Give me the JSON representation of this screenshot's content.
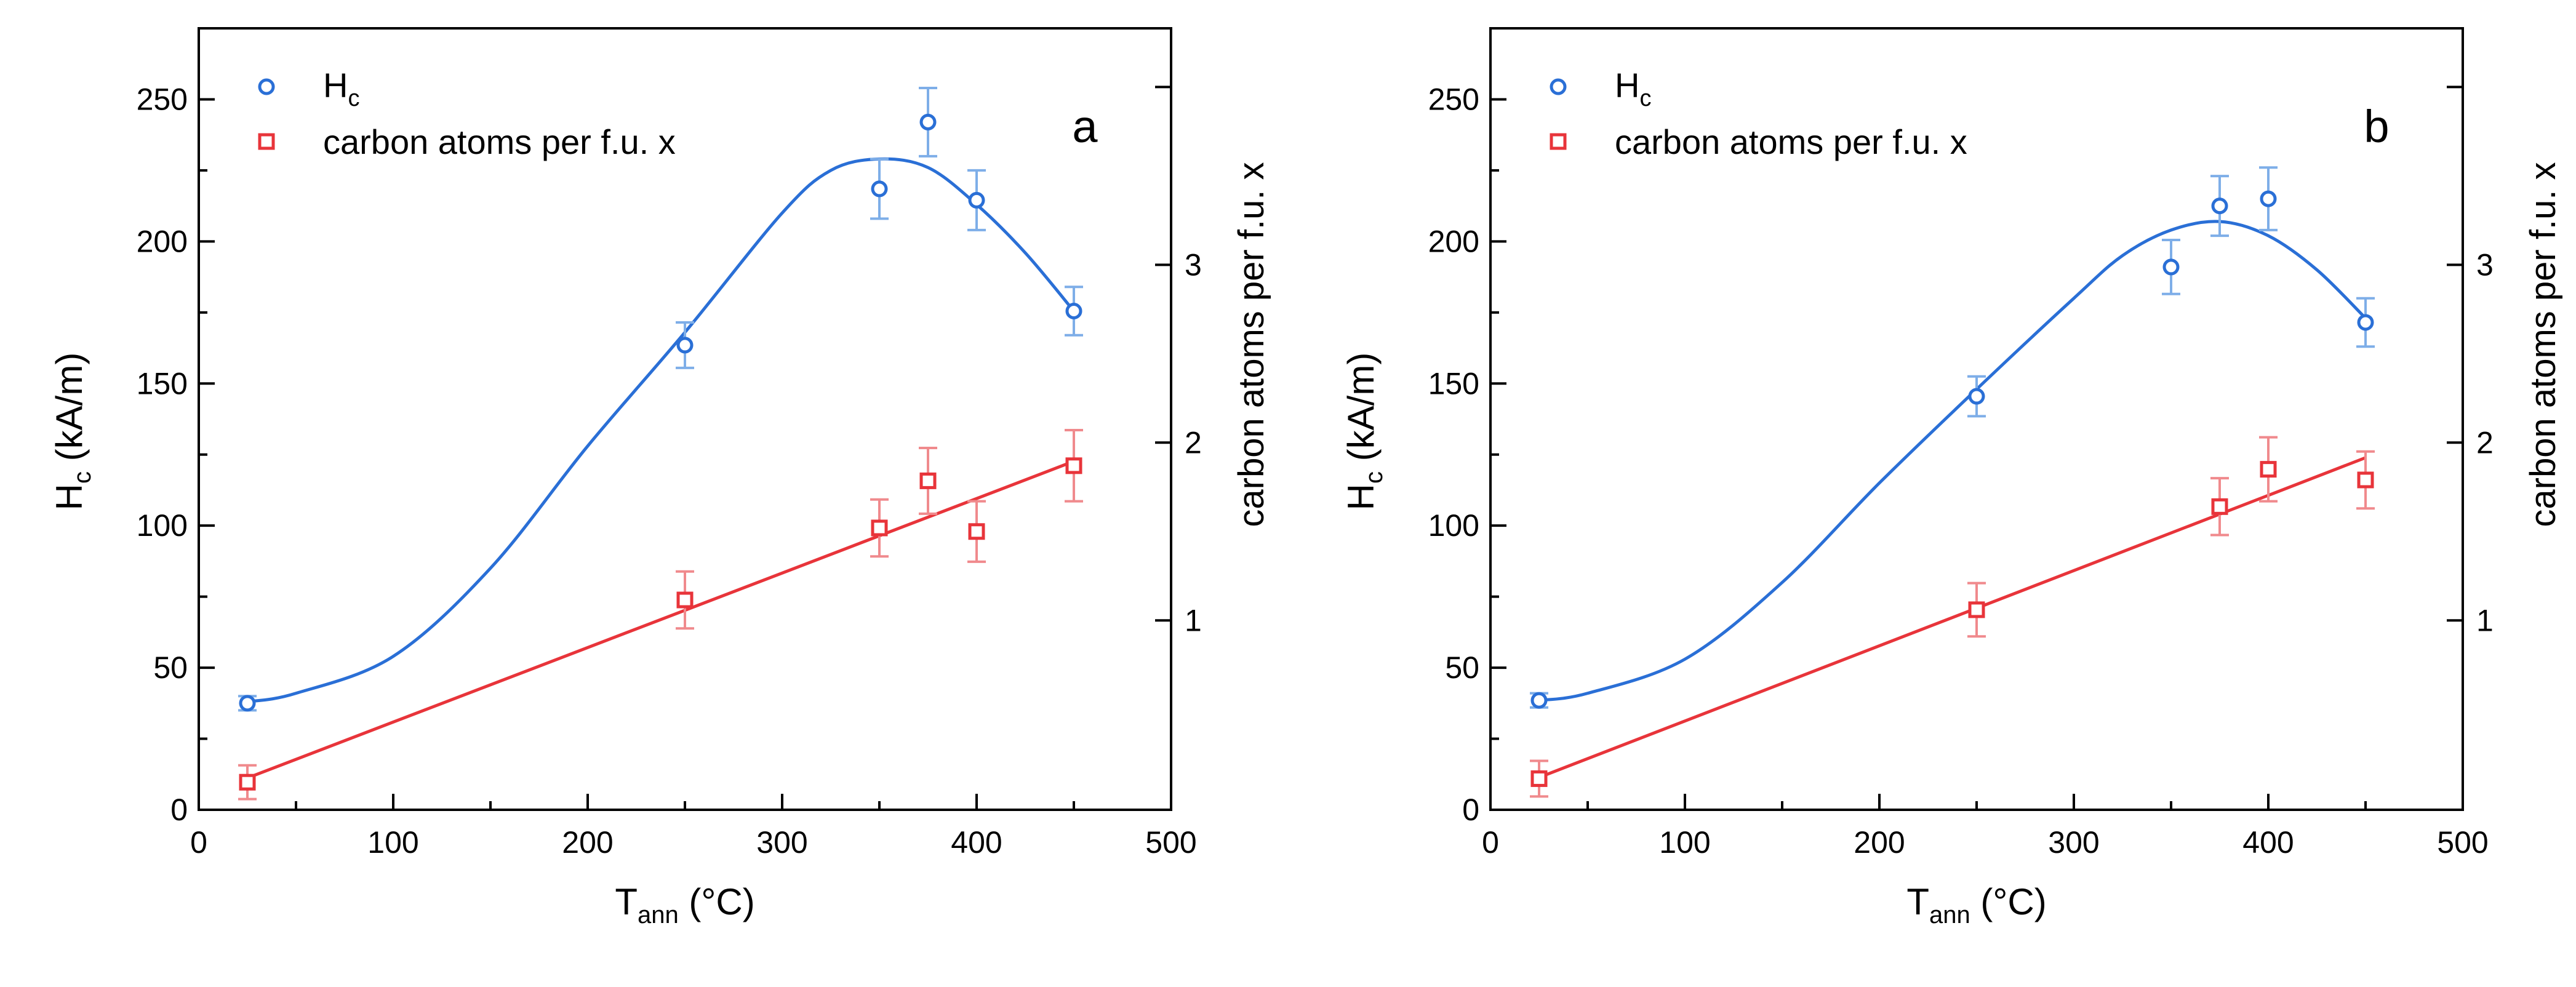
{
  "colors": {
    "hc": "#2a6fd6",
    "carbon": "#e8343a",
    "hc_err": "#7eaee8",
    "carbon_err": "#f08a8d",
    "axis": "#000000"
  },
  "chart_data": [
    {
      "type": "scatter",
      "panel_label": "a",
      "xlabel": {
        "main": "T",
        "sub": "ann",
        "unit": " (°C)"
      },
      "ylabel": {
        "main": "H",
        "sub": "c",
        "unit": " (kA/m)"
      },
      "y2label": "carbon atoms per f.u. x",
      "xlim": [
        0,
        500
      ],
      "ylim": [
        0,
        275
      ],
      "y2lim": [
        -0.065,
        4.33
      ],
      "x_ticks": [
        0,
        100,
        200,
        300,
        400,
        500
      ],
      "y_ticks": [
        0,
        50,
        100,
        150,
        200,
        250
      ],
      "y2_ticks": [
        1,
        2,
        3
      ],
      "y2_minor_ticks": [
        4.0
      ],
      "legend": {
        "position": "top-left",
        "entries": [
          {
            "main": "H",
            "sub": "c"
          },
          {
            "main": "carbon atoms per f.u. x",
            "sub": ""
          }
        ]
      },
      "series": [
        {
          "name": "Hc",
          "axis": "left",
          "marker": "circle",
          "x": [
            25,
            250,
            350,
            375,
            400,
            450
          ],
          "y": [
            37.5,
            163.5,
            218.5,
            242,
            214.5,
            175.5
          ],
          "err": [
            2.5,
            8,
            10.5,
            12,
            10.5,
            8.5
          ],
          "fit": {
            "x": [
              25,
              50,
              100,
              150,
              200,
              250,
              300,
              325,
              350,
              375,
              400,
              425,
              450
            ],
            "y": [
              38,
              41,
              54,
              85,
              128,
              168,
              210,
              225,
              229,
              226,
              213,
              196,
              175.5
            ]
          }
        },
        {
          "name": "carbon atoms per f.u. x",
          "axis": "right",
          "marker": "square",
          "x": [
            25,
            250,
            350,
            375,
            400,
            450
          ],
          "y": [
            0.09,
            1.115,
            1.52,
            1.785,
            1.5,
            1.87
          ],
          "err": [
            0.095,
            0.16,
            0.16,
            0.185,
            0.17,
            0.2
          ],
          "fit": {
            "x": [
              25,
              450
            ],
            "y": [
              0.114,
              1.895
            ]
          }
        }
      ]
    },
    {
      "type": "scatter",
      "panel_label": "b",
      "xlabel": {
        "main": "T",
        "sub": "ann",
        "unit": " (°C)"
      },
      "ylabel": {
        "main": "H",
        "sub": "c",
        "unit": " (kA/m)"
      },
      "y2label": "carbon atoms per f.u. x",
      "xlim": [
        0,
        500
      ],
      "ylim": [
        0,
        275
      ],
      "y2lim": [
        -0.065,
        4.33
      ],
      "x_ticks": [
        0,
        100,
        200,
        300,
        400,
        500
      ],
      "y_ticks": [
        0,
        50,
        100,
        150,
        200,
        250
      ],
      "y2_ticks": [
        1,
        2,
        3
      ],
      "y2_minor_ticks": [
        4.0
      ],
      "legend": {
        "position": "top-left",
        "entries": [
          {
            "main": "H",
            "sub": "c"
          },
          {
            "main": "carbon atoms per f.u. x",
            "sub": ""
          }
        ]
      },
      "series": [
        {
          "name": "Hc",
          "axis": "left",
          "marker": "circle",
          "x": [
            25,
            250,
            350,
            375,
            400,
            450
          ],
          "y": [
            38.5,
            145.5,
            191,
            212.5,
            215,
            171.5
          ],
          "err": [
            2.5,
            7,
            9.5,
            10.5,
            11,
            8.5
          ],
          "fit": {
            "x": [
              25,
              50,
              100,
              150,
              200,
              250,
              300,
              325,
              350,
              375,
              400,
              425,
              450
            ],
            "y": [
              38.5,
              41,
              53,
              80,
              115,
              148,
              180,
              195,
              204,
              207,
              202,
              190,
              173
            ]
          }
        },
        {
          "name": "carbon atoms per f.u. x",
          "axis": "right",
          "marker": "square",
          "x": [
            25,
            250,
            350,
            375,
            400,
            450
          ],
          "y": [
            0.11,
            1.06,
            null,
            1.64,
            1.85,
            1.79
          ],
          "err": [
            0.1,
            0.15,
            null,
            0.16,
            0.18,
            0.16
          ],
          "fit": {
            "x": [
              25,
              450
            ],
            "y": [
              0.117,
              1.915
            ]
          }
        }
      ]
    }
  ]
}
